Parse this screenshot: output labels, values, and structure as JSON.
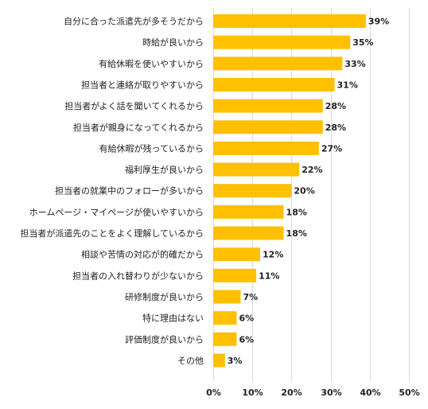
{
  "chart_data": {
    "type": "bar",
    "orientation": "horizontal",
    "categories": [
      "自分に合った派遣先が多そうだから",
      "時給が良いから",
      "有給休暇を使いやすいから",
      "担当者と連絡が取りやすいから",
      "担当者がよく話を聞いてくれるから",
      "担当者が親身になってくれるから",
      "有給休暇が残っているから",
      "福利厚生が良いから",
      "担当者の就業中のフォローが多いから",
      "ホームページ・マイページが使いやすいから",
      "担当者が派遣先のことをよく理解しているから",
      "相談や苦情の対応が的確だから",
      "担当者の入れ替わりが少ないから",
      "研修制度が良いから",
      "特に理由はない",
      "評価制度が良いから",
      "その他"
    ],
    "values": [
      39,
      35,
      33,
      31,
      28,
      28,
      27,
      22,
      20,
      18,
      18,
      12,
      11,
      7,
      6,
      6,
      3
    ],
    "value_labels": [
      "39%",
      "35%",
      "33%",
      "31%",
      "28%",
      "28%",
      "27%",
      "22%",
      "20%",
      "18%",
      "18%",
      "12%",
      "11%",
      "7%",
      "6%",
      "6%",
      "3%"
    ],
    "xlim": [
      0,
      50
    ],
    "ticks": [
      0,
      10,
      20,
      30,
      40,
      50
    ],
    "tick_labels": [
      "0%",
      "10%",
      "20%",
      "30%",
      "40%",
      "50%"
    ],
    "grid": true,
    "bar_color": "#ffc000",
    "title": "",
    "xlabel": "",
    "ylabel": ""
  }
}
